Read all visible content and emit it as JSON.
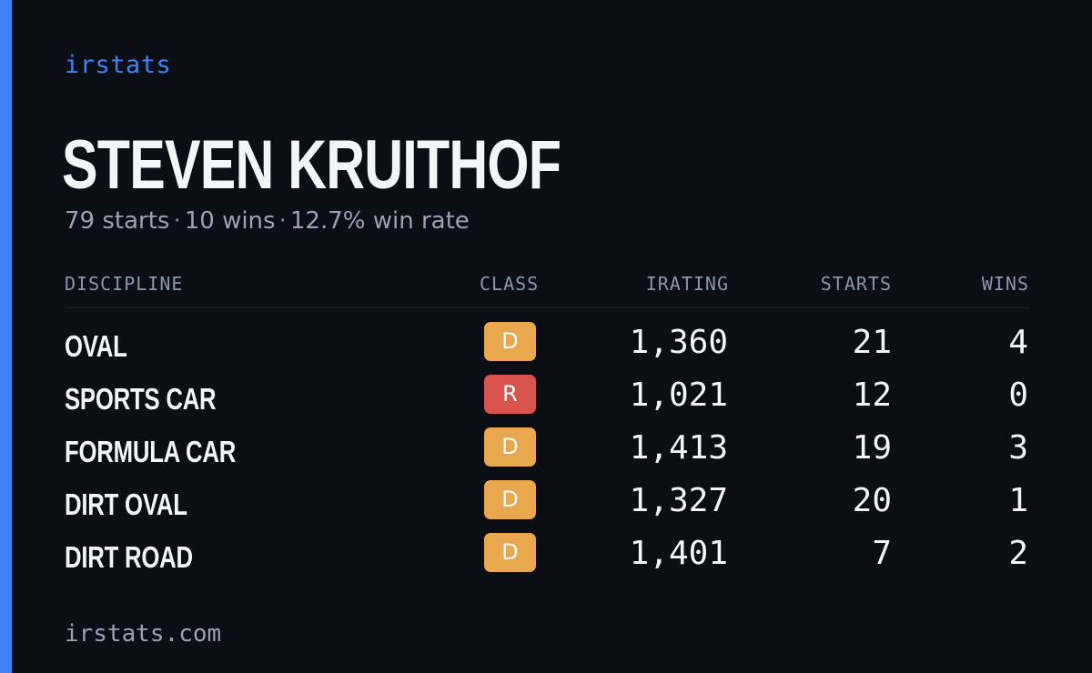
{
  "brand": "irstats",
  "player": {
    "name": "STEVEN KRUITHOF"
  },
  "summary": {
    "starts": "79 starts",
    "wins": "10 wins",
    "win_rate": "12.7% win rate",
    "separator": "·"
  },
  "table": {
    "headers": {
      "discipline": "DISCIPLINE",
      "class": "CLASS",
      "irating": "IRATING",
      "starts": "STARTS",
      "wins": "WINS"
    },
    "rows": [
      {
        "discipline": "OVAL",
        "class": "D",
        "irating": "1,360",
        "starts": "21",
        "wins": "4"
      },
      {
        "discipline": "SPORTS CAR",
        "class": "R",
        "irating": "1,021",
        "starts": "12",
        "wins": "0"
      },
      {
        "discipline": "FORMULA CAR",
        "class": "D",
        "irating": "1,413",
        "starts": "19",
        "wins": "3"
      },
      {
        "discipline": "DIRT OVAL",
        "class": "D",
        "irating": "1,327",
        "starts": "20",
        "wins": "1"
      },
      {
        "discipline": "DIRT ROAD",
        "class": "D",
        "irating": "1,401",
        "starts": "7",
        "wins": "2"
      }
    ]
  },
  "class_colors": {
    "D": "#e9a84e",
    "R": "#d9534f"
  },
  "accent_color": "#3d82f6",
  "footer": "irstats.com"
}
